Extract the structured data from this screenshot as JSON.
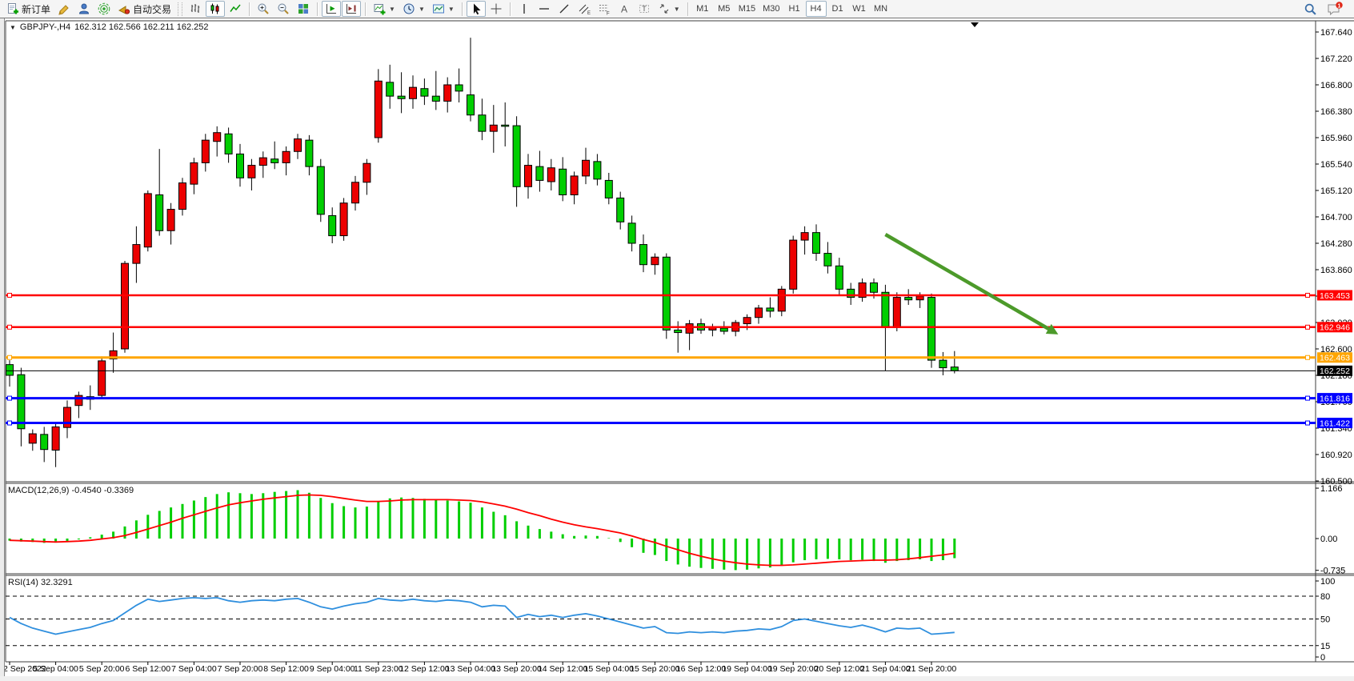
{
  "toolbar": {
    "new_order_label": "新订单",
    "autotrade_label": "自动交易",
    "timeframes": [
      "M1",
      "M5",
      "M15",
      "M30",
      "H1",
      "H4",
      "D1",
      "W1",
      "MN"
    ],
    "active_timeframe": "H4",
    "chat_badge": "1"
  },
  "chart": {
    "symbol_period": "GBPJPY-,H4",
    "ohlc_text": "162.312 162.566 162.211 162.252",
    "macd_label": "MACD(12,26,9) -0.4540 -0.3369",
    "rsi_label": "RSI(14) 32.3291"
  },
  "chart_data": {
    "type": "candlestick",
    "symbol": "GBPJPY-",
    "timeframe": "H4",
    "title_ohlc": {
      "open": 162.312,
      "high": 162.566,
      "low": 162.211,
      "close": 162.252
    },
    "colors": {
      "up": "#EC0000",
      "down": "#00CE00",
      "wick": "#000000",
      "macd_hist": "#00CE00",
      "macd_signal": "#FF0000",
      "rsi": "#2F8FDE",
      "arrow": "#4C9A2A",
      "grid_border": "#3c3c3c"
    },
    "price_axis_ticks": [
      "167.640",
      "167.220",
      "166.800",
      "166.380",
      "165.960",
      "165.540",
      "165.120",
      "164.700",
      "164.280",
      "163.860",
      "163.440",
      "163.020",
      "162.600",
      "162.180",
      "161.760",
      "161.340",
      "160.920",
      "160.500"
    ],
    "time_labels": [
      "2 Sep 2022",
      "5 Sep 04:00",
      "5 Sep 20:00",
      "6 Sep 12:00",
      "7 Sep 04:00",
      "7 Sep 20:00",
      "8 Sep 12:00",
      "9 Sep 04:00",
      "11 Sep 23:00",
      "12 Sep 12:00",
      "13 Sep 04:00",
      "13 Sep 20:00",
      "14 Sep 12:00",
      "15 Sep 04:00",
      "15 Sep 20:00",
      "16 Sep 12:00",
      "19 Sep 04:00",
      "19 Sep 20:00",
      "20 Sep 12:00",
      "21 Sep 04:00",
      "21 Sep 20:00"
    ],
    "label_every_n_bars": 4,
    "candles": [
      [
        162.35,
        162.42,
        162.0,
        162.18
      ],
      [
        162.19,
        162.3,
        161.05,
        161.33
      ],
      [
        161.1,
        161.32,
        160.98,
        161.25
      ],
      [
        161.24,
        161.36,
        160.8,
        161.0
      ],
      [
        160.99,
        161.42,
        160.72,
        161.36
      ],
      [
        161.35,
        161.78,
        161.18,
        161.67
      ],
      [
        161.7,
        161.92,
        161.5,
        161.86
      ],
      [
        161.84,
        162.02,
        161.63,
        161.8
      ],
      [
        161.86,
        162.48,
        161.8,
        162.41
      ],
      [
        162.44,
        162.86,
        162.22,
        162.57
      ],
      [
        162.6,
        164.0,
        162.54,
        163.96
      ],
      [
        163.96,
        164.55,
        163.65,
        164.26
      ],
      [
        164.22,
        165.12,
        164.15,
        165.07
      ],
      [
        165.05,
        165.78,
        164.4,
        164.48
      ],
      [
        164.48,
        164.92,
        164.26,
        164.82
      ],
      [
        164.82,
        165.32,
        164.72,
        165.24
      ],
      [
        165.22,
        165.64,
        165.06,
        165.56
      ],
      [
        165.56,
        166.02,
        165.42,
        165.92
      ],
      [
        165.9,
        166.14,
        165.66,
        166.04
      ],
      [
        166.02,
        166.12,
        165.56,
        165.7
      ],
      [
        165.7,
        165.86,
        165.18,
        165.32
      ],
      [
        165.32,
        165.62,
        165.12,
        165.52
      ],
      [
        165.52,
        165.74,
        165.32,
        165.64
      ],
      [
        165.62,
        165.9,
        165.46,
        165.56
      ],
      [
        165.56,
        165.82,
        165.36,
        165.74
      ],
      [
        165.74,
        166.02,
        165.62,
        165.94
      ],
      [
        165.92,
        166.0,
        165.36,
        165.5
      ],
      [
        165.5,
        165.62,
        164.62,
        164.74
      ],
      [
        164.72,
        164.85,
        164.28,
        164.4
      ],
      [
        164.4,
        165.0,
        164.32,
        164.92
      ],
      [
        164.92,
        165.35,
        164.8,
        165.25
      ],
      [
        165.25,
        165.62,
        165.05,
        165.55
      ],
      [
        165.96,
        167.05,
        165.88,
        166.86
      ],
      [
        166.84,
        167.12,
        166.42,
        166.62
      ],
      [
        166.62,
        167.0,
        166.35,
        166.58
      ],
      [
        166.58,
        166.95,
        166.42,
        166.76
      ],
      [
        166.74,
        166.9,
        166.48,
        166.62
      ],
      [
        166.62,
        167.02,
        166.4,
        166.54
      ],
      [
        166.54,
        166.92,
        166.36,
        166.8
      ],
      [
        166.8,
        167.06,
        166.52,
        166.7
      ],
      [
        166.64,
        167.55,
        166.22,
        166.32
      ],
      [
        166.32,
        166.58,
        165.92,
        166.06
      ],
      [
        166.06,
        166.48,
        165.72,
        166.16
      ],
      [
        166.16,
        166.52,
        165.82,
        166.14
      ],
      [
        166.15,
        166.3,
        164.86,
        165.18
      ],
      [
        165.18,
        165.7,
        164.99,
        165.52
      ],
      [
        165.5,
        165.75,
        165.1,
        165.28
      ],
      [
        165.26,
        165.62,
        165.12,
        165.48
      ],
      [
        165.46,
        165.65,
        164.95,
        165.05
      ],
      [
        165.05,
        165.42,
        164.9,
        165.35
      ],
      [
        165.35,
        165.8,
        165.22,
        165.6
      ],
      [
        165.58,
        165.7,
        165.2,
        165.3
      ],
      [
        165.28,
        165.4,
        164.9,
        165.0
      ],
      [
        165.0,
        165.1,
        164.5,
        164.62
      ],
      [
        164.6,
        164.72,
        164.15,
        164.28
      ],
      [
        164.26,
        164.42,
        163.82,
        163.94
      ],
      [
        163.94,
        164.12,
        163.78,
        164.06
      ],
      [
        164.06,
        164.12,
        162.76,
        162.9
      ],
      [
        162.9,
        163.04,
        162.54,
        162.86
      ],
      [
        162.85,
        163.06,
        162.58,
        163.0
      ],
      [
        163.0,
        163.08,
        162.84,
        162.9
      ],
      [
        162.9,
        163.0,
        162.8,
        162.94
      ],
      [
        162.93,
        163.04,
        162.83,
        162.88
      ],
      [
        162.88,
        163.06,
        162.8,
        163.02
      ],
      [
        163.0,
        163.15,
        162.9,
        163.1
      ],
      [
        163.1,
        163.3,
        163.0,
        163.25
      ],
      [
        163.25,
        163.42,
        163.1,
        163.2
      ],
      [
        163.2,
        163.6,
        163.12,
        163.55
      ],
      [
        163.55,
        164.4,
        163.48,
        164.33
      ],
      [
        164.33,
        164.55,
        164.1,
        164.45
      ],
      [
        164.45,
        164.58,
        164.0,
        164.12
      ],
      [
        164.12,
        164.3,
        163.8,
        163.92
      ],
      [
        163.92,
        164.05,
        163.45,
        163.55
      ],
      [
        163.55,
        163.65,
        163.3,
        163.42
      ],
      [
        163.42,
        163.72,
        163.35,
        163.65
      ],
      [
        163.65,
        163.72,
        163.4,
        163.5
      ],
      [
        163.5,
        163.62,
        162.25,
        162.95
      ],
      [
        162.95,
        163.5,
        162.88,
        163.42
      ],
      [
        163.42,
        163.55,
        163.3,
        163.38
      ],
      [
        163.38,
        163.5,
        163.25,
        163.44
      ],
      [
        163.42,
        163.48,
        162.3,
        162.42
      ],
      [
        162.42,
        162.55,
        162.18,
        162.3
      ],
      [
        162.312,
        162.566,
        162.211,
        162.252
      ]
    ],
    "horizontal_lines": [
      {
        "price": 163.453,
        "label": "163.453",
        "color": "#FF0000",
        "width": 2.5
      },
      {
        "price": 162.946,
        "label": "162.946",
        "color": "#FF0000",
        "width": 2.5
      },
      {
        "price": 162.463,
        "label": "162.463",
        "color": "#FFA500",
        "width": 3
      },
      {
        "price": 161.816,
        "label": "161.816",
        "color": "#0000FF",
        "width": 3
      },
      {
        "price": 161.422,
        "label": "161.422",
        "color": "#0000FF",
        "width": 3
      }
    ],
    "current_price": {
      "price": 162.252,
      "label": "162.252",
      "color": "#000000"
    },
    "trend_arrow": {
      "from_bar": 76,
      "from_price": 164.42,
      "to_bar": 91,
      "to_price": 162.83
    },
    "macd": {
      "params": "12,26,9",
      "value": -0.454,
      "signal_value": -0.3369,
      "axis_labels": [
        "1.166",
        "0.00",
        "-0.735"
      ],
      "hist": [
        -0.05,
        -0.07,
        -0.08,
        -0.1,
        -0.09,
        -0.06,
        -0.02,
        0.03,
        0.09,
        0.16,
        0.28,
        0.42,
        0.55,
        0.64,
        0.72,
        0.8,
        0.88,
        0.96,
        1.03,
        1.07,
        1.05,
        1.03,
        1.05,
        1.08,
        1.1,
        1.12,
        1.06,
        0.94,
        0.82,
        0.75,
        0.72,
        0.74,
        0.86,
        0.93,
        0.95,
        0.94,
        0.92,
        0.9,
        0.88,
        0.86,
        0.83,
        0.72,
        0.62,
        0.54,
        0.4,
        0.3,
        0.22,
        0.16,
        0.1,
        0.06,
        0.07,
        0.06,
        0.01,
        -0.08,
        -0.2,
        -0.33,
        -0.38,
        -0.52,
        -0.6,
        -0.65,
        -0.68,
        -0.7,
        -0.72,
        -0.73,
        -0.72,
        -0.69,
        -0.67,
        -0.62,
        -0.55,
        -0.5,
        -0.48,
        -0.47,
        -0.48,
        -0.5,
        -0.49,
        -0.52,
        -0.56,
        -0.52,
        -0.5,
        -0.48,
        -0.52,
        -0.5,
        -0.454
      ],
      "signal": [
        -0.04,
        -0.05,
        -0.06,
        -0.07,
        -0.08,
        -0.07,
        -0.06,
        -0.04,
        -0.01,
        0.02,
        0.07,
        0.14,
        0.22,
        0.3,
        0.38,
        0.47,
        0.55,
        0.63,
        0.71,
        0.78,
        0.83,
        0.87,
        0.91,
        0.94,
        0.97,
        1.0,
        1.01,
        1.0,
        0.97,
        0.93,
        0.89,
        0.86,
        0.86,
        0.87,
        0.89,
        0.9,
        0.9,
        0.9,
        0.9,
        0.89,
        0.88,
        0.85,
        0.8,
        0.75,
        0.68,
        0.6,
        0.53,
        0.45,
        0.38,
        0.32,
        0.27,
        0.23,
        0.18,
        0.13,
        0.06,
        -0.02,
        -0.09,
        -0.18,
        -0.26,
        -0.34,
        -0.41,
        -0.47,
        -0.52,
        -0.56,
        -0.59,
        -0.61,
        -0.62,
        -0.62,
        -0.61,
        -0.59,
        -0.57,
        -0.55,
        -0.53,
        -0.52,
        -0.51,
        -0.5,
        -0.5,
        -0.49,
        -0.47,
        -0.44,
        -0.41,
        -0.38,
        -0.34
      ]
    },
    "rsi": {
      "period": 14,
      "value": 32.3291,
      "axis_labels": [
        "100",
        "80",
        "50",
        "15",
        "0"
      ],
      "levels": [
        80,
        50,
        15
      ],
      "values": [
        52,
        44,
        38,
        34,
        30,
        33,
        36,
        39,
        44,
        48,
        58,
        68,
        76,
        73,
        75,
        77,
        78,
        77,
        78,
        74,
        72,
        74,
        75,
        74,
        76,
        77,
        72,
        66,
        63,
        67,
        70,
        72,
        77,
        75,
        74,
        76,
        74,
        73,
        75,
        74,
        72,
        66,
        68,
        67,
        52,
        56,
        53,
        55,
        52,
        55,
        57,
        54,
        50,
        46,
        42,
        38,
        40,
        32,
        31,
        33,
        32,
        33,
        32,
        34,
        35,
        37,
        36,
        40,
        48,
        50,
        47,
        44,
        41,
        39,
        42,
        38,
        33,
        38,
        37,
        38,
        30,
        31,
        32.33
      ]
    }
  }
}
